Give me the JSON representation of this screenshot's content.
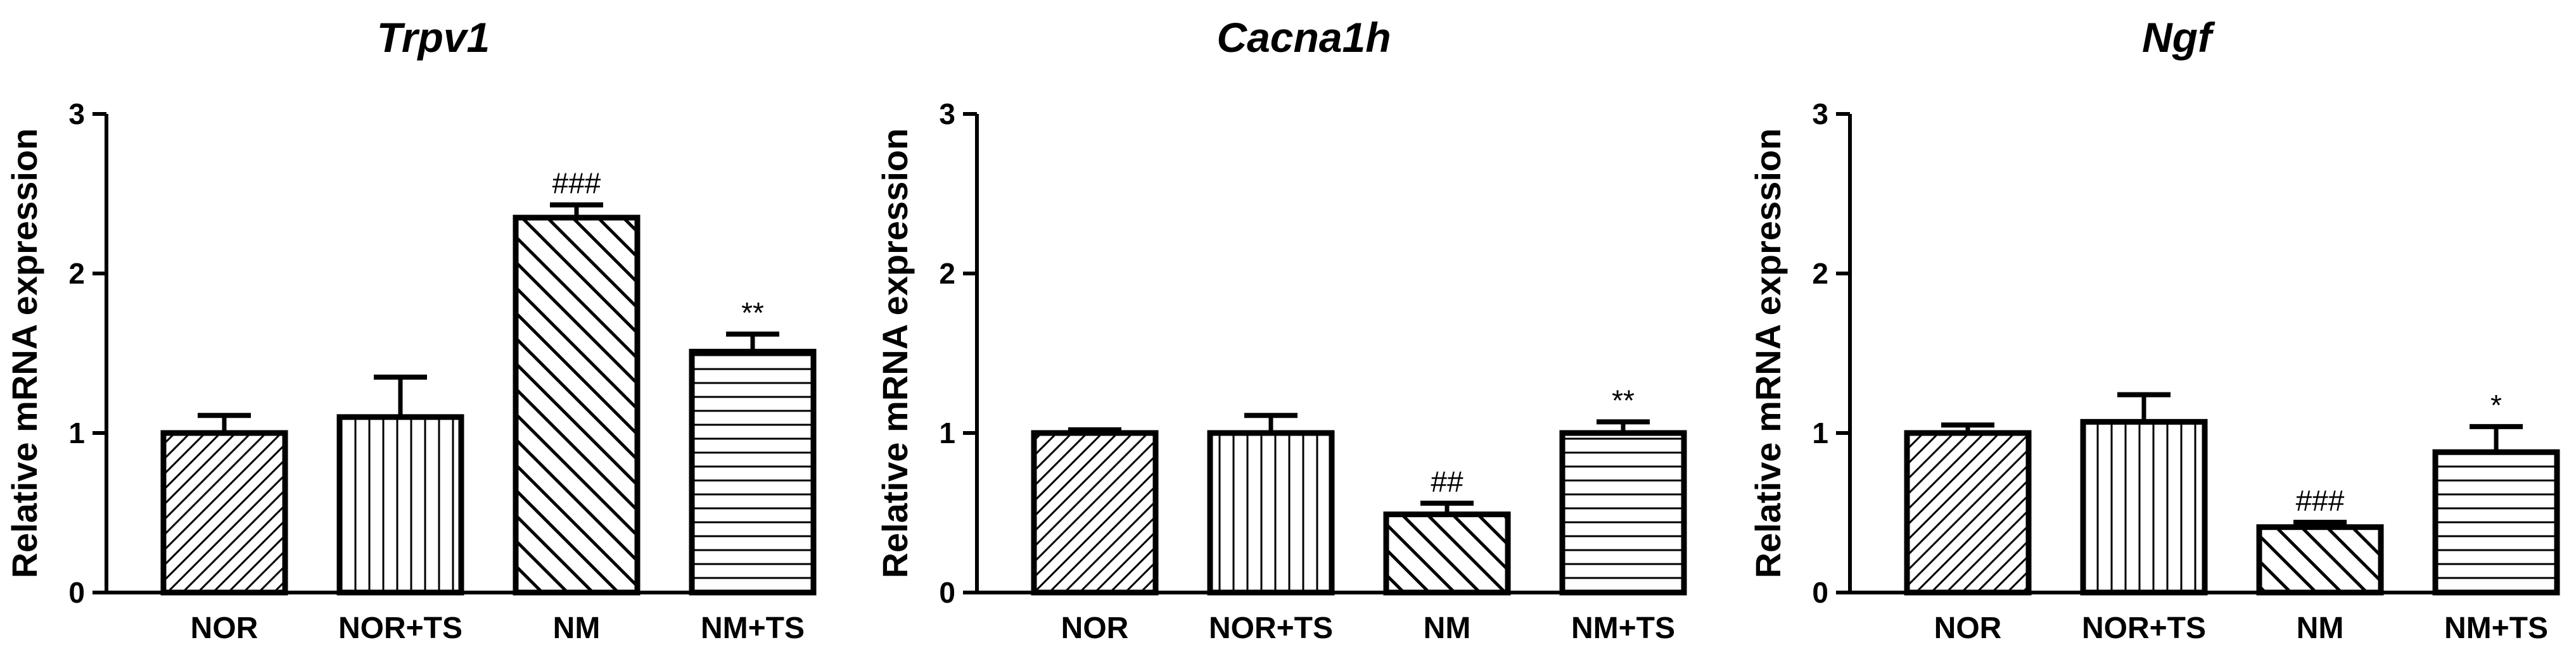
{
  "chart_data": [
    {
      "type": "bar",
      "title": "Trpv1",
      "xlabel": "",
      "ylabel": "Relative mRNA expression",
      "ylim": [
        0,
        3
      ],
      "yticks": [
        0,
        1,
        2,
        3
      ],
      "categories": [
        "NOR",
        "NOR+TS",
        "NM",
        "NM+TS"
      ],
      "values": [
        1.0,
        1.1,
        2.35,
        1.51
      ],
      "error": [
        0.11,
        0.25,
        0.08,
        0.11
      ],
      "annotations": [
        "",
        "",
        "###",
        "**"
      ],
      "patterns": [
        "hatch-right",
        "vertical",
        "hatch-left",
        "horizontal"
      ],
      "colors": {
        "bar_fill": "#ffffff",
        "stroke": "#000000"
      },
      "grid": false
    },
    {
      "type": "bar",
      "title": "Cacna1h",
      "xlabel": "",
      "ylabel": "Relative mRNA expression",
      "ylim": [
        0,
        3
      ],
      "yticks": [
        0,
        1,
        2,
        3
      ],
      "categories": [
        "NOR",
        "NOR+TS",
        "NM",
        "NM+TS"
      ],
      "values": [
        1.0,
        1.0,
        0.49,
        1.0
      ],
      "error": [
        0.02,
        0.11,
        0.07,
        0.07
      ],
      "annotations": [
        "",
        "",
        "##",
        "**"
      ],
      "patterns": [
        "hatch-right",
        "vertical",
        "hatch-left",
        "horizontal"
      ],
      "colors": {
        "bar_fill": "#ffffff",
        "stroke": "#000000"
      },
      "grid": false
    },
    {
      "type": "bar",
      "title": "Ngf",
      "xlabel": "",
      "ylabel": "Relative mRNA expression",
      "ylim": [
        0,
        3
      ],
      "yticks": [
        0,
        1,
        2,
        3
      ],
      "categories": [
        "NOR",
        "NOR+TS",
        "NM",
        "NM+TS"
      ],
      "values": [
        1.0,
        1.07,
        0.41,
        0.88
      ],
      "error": [
        0.05,
        0.17,
        0.03,
        0.16
      ],
      "annotations": [
        "",
        "",
        "###",
        "*"
      ],
      "patterns": [
        "hatch-right",
        "vertical",
        "hatch-left",
        "horizontal"
      ],
      "colors": {
        "bar_fill": "#ffffff",
        "stroke": "#000000"
      },
      "grid": false
    }
  ]
}
